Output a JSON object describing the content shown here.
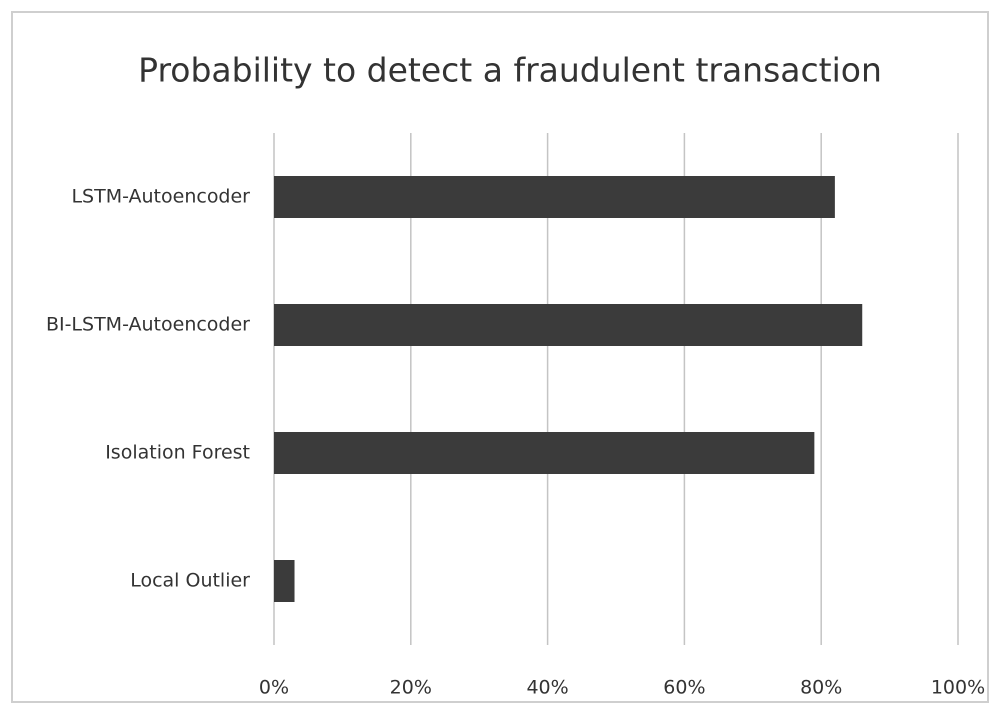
{
  "chart_data": {
    "type": "barh",
    "title": "Probability to detect a fraudulent transaction",
    "categories": [
      "LSTM-Autoencoder",
      "BI-LSTM-Autoencoder",
      "Isolation Forest",
      "Local Outlier"
    ],
    "values": [
      82,
      86,
      79,
      3
    ],
    "color": "#3b3b3b",
    "xlim": [
      0,
      100
    ],
    "xticks": [
      {
        "value": 0,
        "label": "0%"
      },
      {
        "value": 20,
        "label": "20%"
      },
      {
        "value": 40,
        "label": "40%"
      },
      {
        "value": 60,
        "label": "60%"
      },
      {
        "value": 80,
        "label": "80%"
      },
      {
        "value": 100,
        "label": "100%"
      }
    ],
    "grid": true
  }
}
